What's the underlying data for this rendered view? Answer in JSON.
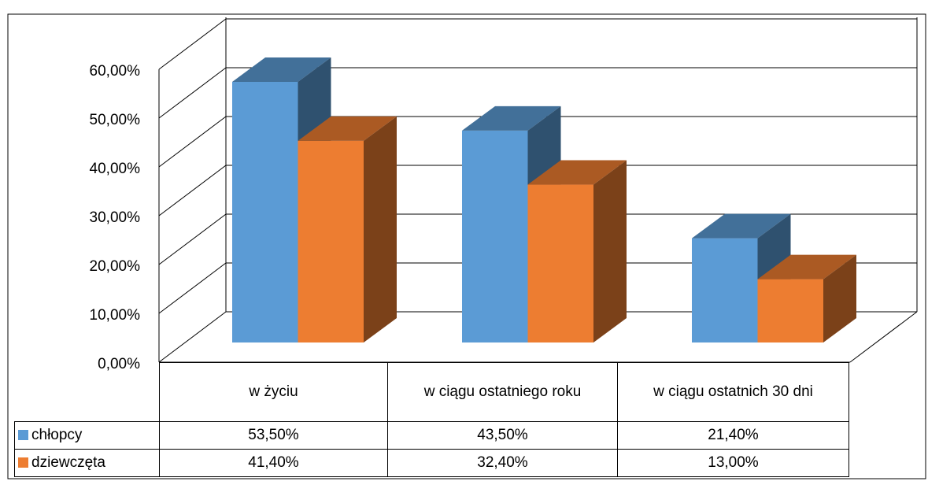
{
  "chart_data": {
    "type": "bar",
    "categories": [
      "w życiu",
      "w ciągu ostatniego roku",
      "w ciągu ostatnich 30 dni"
    ],
    "series": [
      {
        "name": "chłopcy",
        "color": "#5b9bd5",
        "values": [
          53.5,
          43.5,
          21.4
        ],
        "value_labels": [
          "53,50%",
          "43,50%",
          "21,40%"
        ]
      },
      {
        "name": "dziewczęta",
        "color": "#ed7d31",
        "values": [
          41.4,
          32.4,
          13.0
        ],
        "value_labels": [
          "41,40%",
          "32,40%",
          "13,00%"
        ]
      }
    ],
    "ylim": [
      0,
      60
    ],
    "yticks": [
      {
        "value": 0,
        "label": "0,00%"
      },
      {
        "value": 10,
        "label": "10,00%"
      },
      {
        "value": 20,
        "label": "20,00%"
      },
      {
        "value": 30,
        "label": "30,00%"
      },
      {
        "value": 40,
        "label": "40,00%"
      },
      {
        "value": 50,
        "label": "50,00%"
      },
      {
        "value": 60,
        "label": "60,00%"
      }
    ],
    "grid": true
  }
}
